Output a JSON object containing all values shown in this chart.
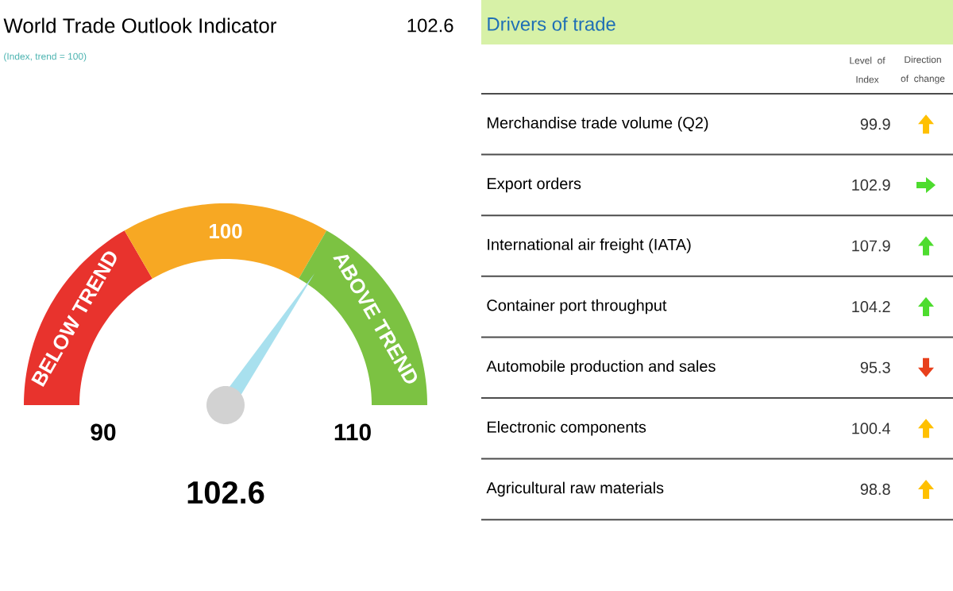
{
  "chart_data": [
    {
      "type": "donut",
      "title": "World Trade Outlook Indicator",
      "subtitle": "(Index, trend = 100)",
      "categories": [
        "BELOW TREND",
        "100",
        "ABOVE TREND"
      ],
      "values": [
        33.3,
        33.4,
        33.3
      ],
      "colors": [
        "#e8332d",
        "#f7a823",
        "#7cc242"
      ],
      "needle": "ABOVE TREND",
      "annotations": [
        "102.6",
        "90",
        "110",
        "102.6"
      ]
    },
    {
      "type": "other",
      "title": "Drivers of trade",
      "categories": [
        "Merchandise trade volume (Q2)",
        "Export orders",
        "International air freight (IATA)",
        "Container port throughput",
        "Automobile production and sales",
        "Electronic components",
        "Agricultural raw materials"
      ],
      "values": [
        99.9,
        102.9,
        107.9,
        104.2,
        95.3,
        100.4,
        98.8
      ],
      "colors": [
        "#ffc000",
        "#4ddc2e",
        "#4ddc2e",
        "#4ddc2e",
        "#e8401c",
        "#ffc000",
        "#ffc000"
      ],
      "data_labels": true,
      "annotations": [
        "Level of Index",
        "Direction of change"
      ]
    }
  ]
}
